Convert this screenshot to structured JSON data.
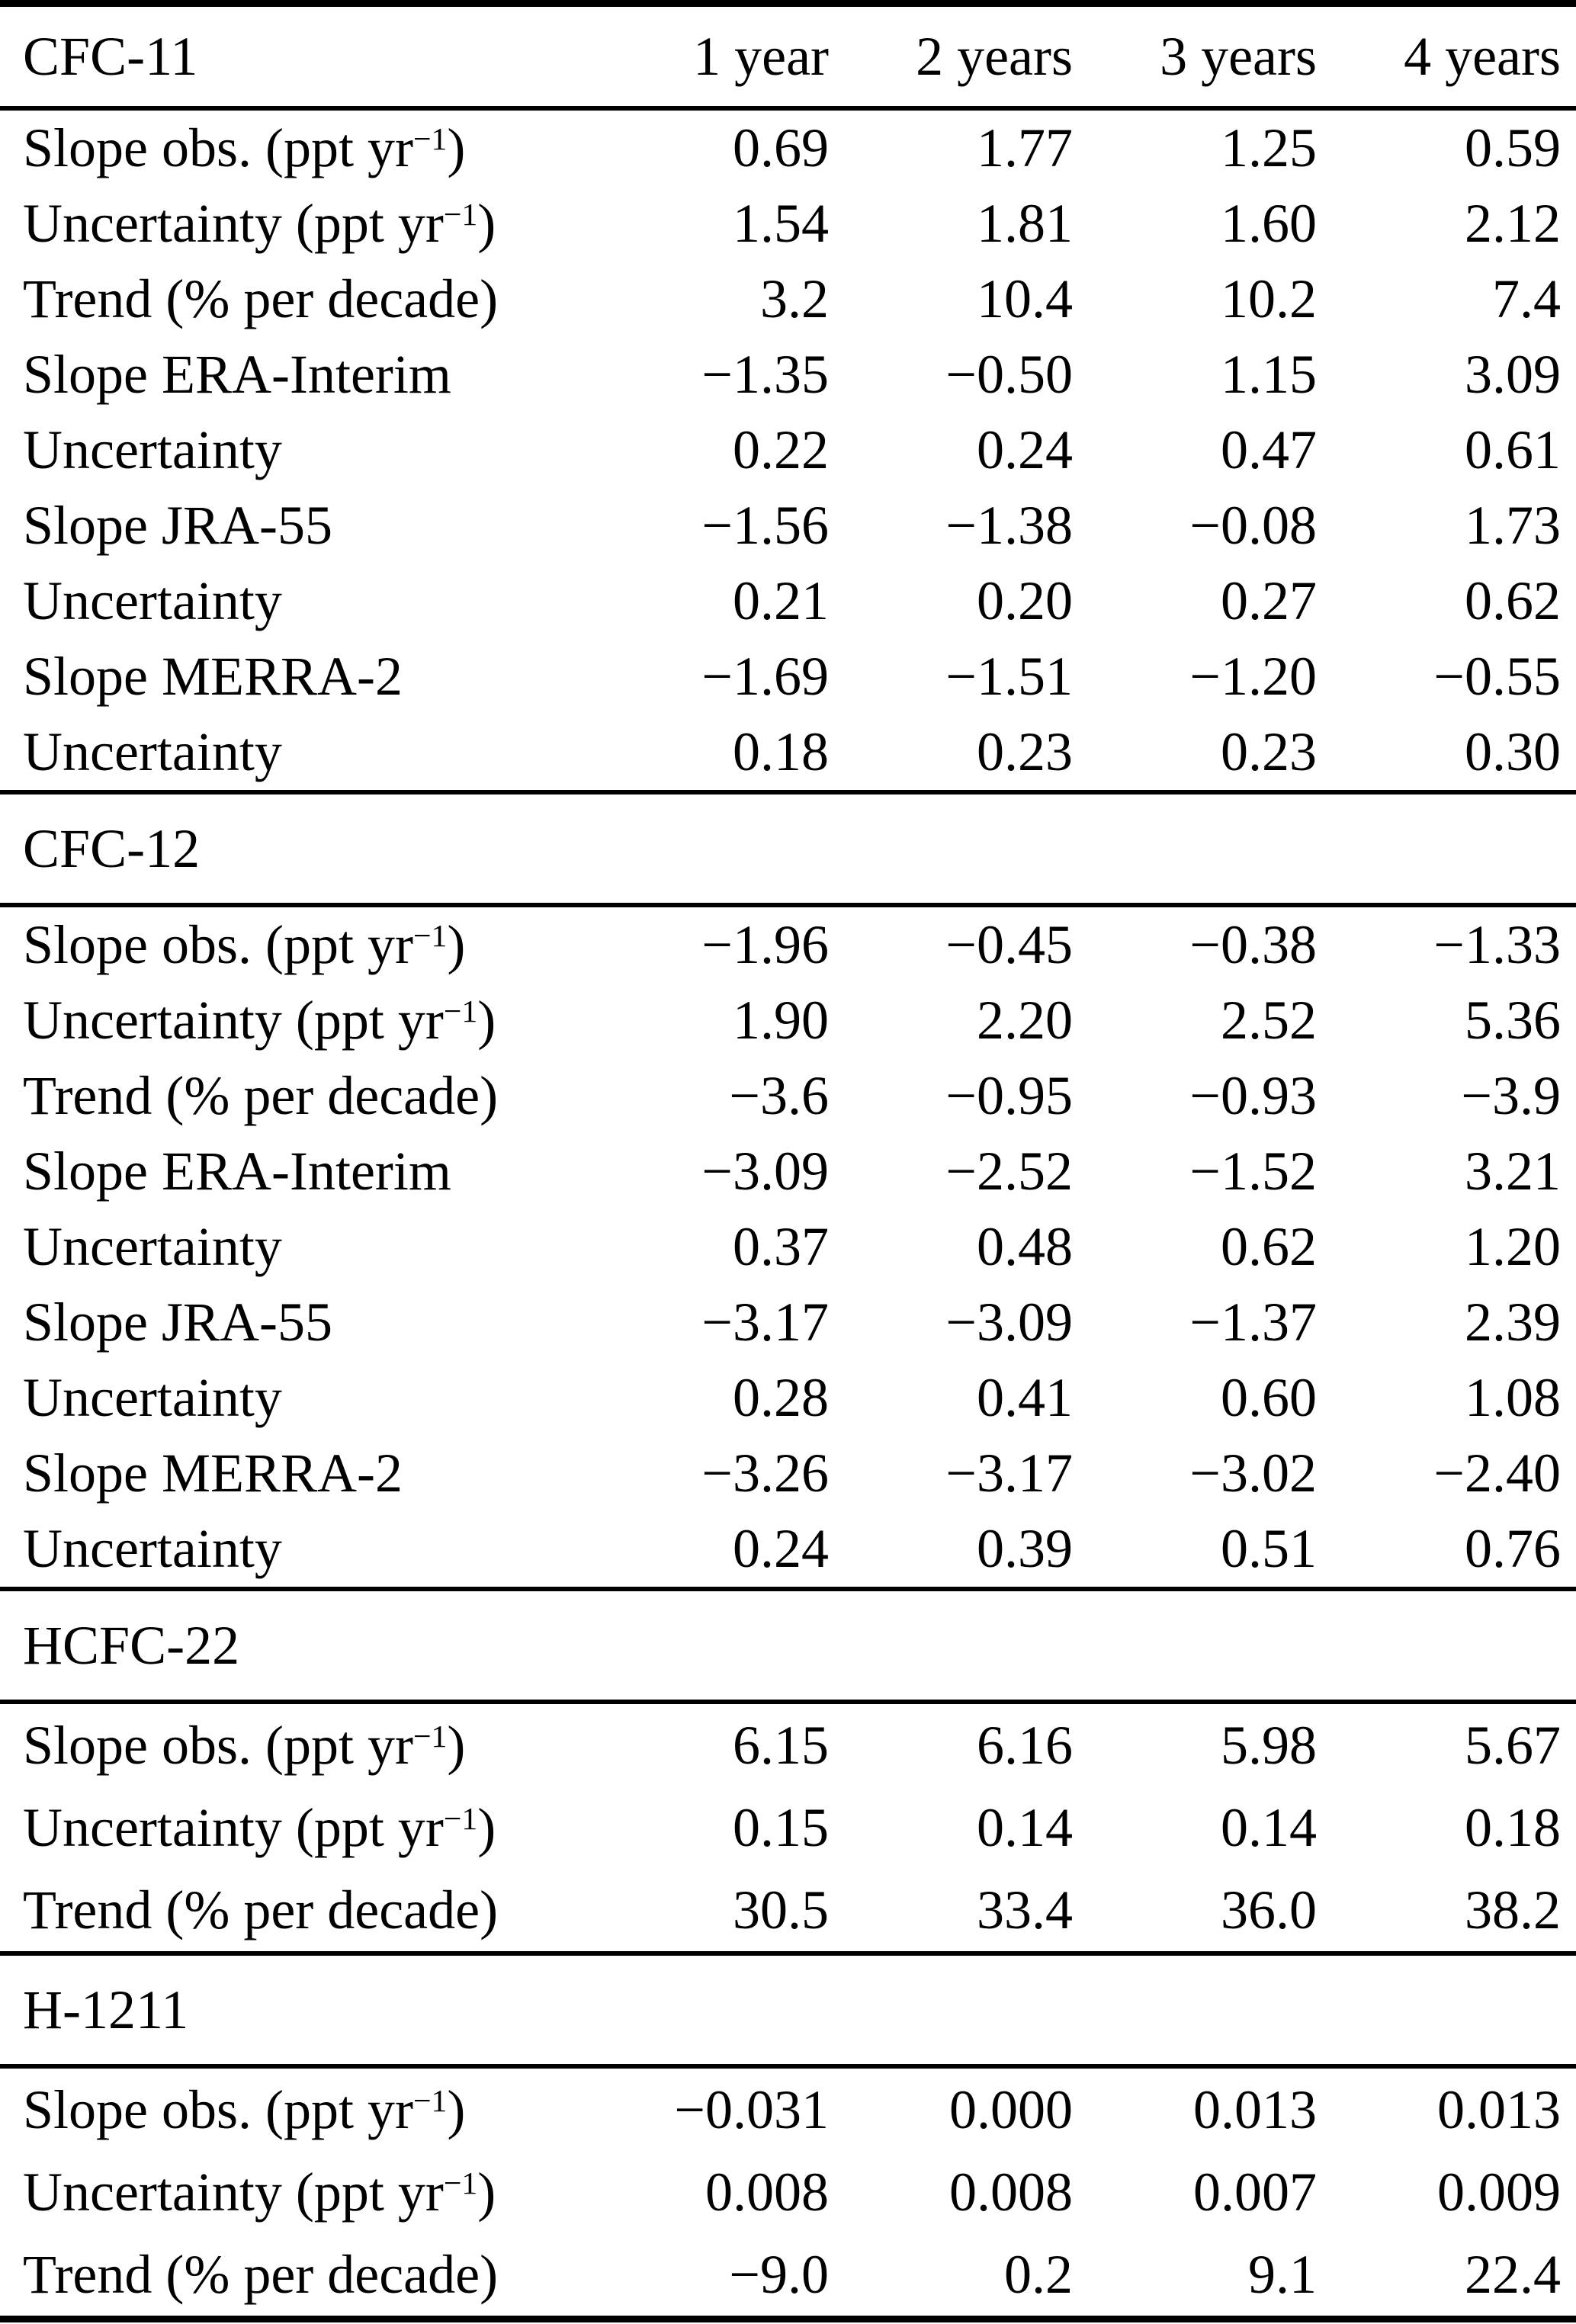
{
  "table": {
    "columns": [
      "1 year",
      "2 years",
      "3 years",
      "4 years"
    ],
    "sections": [
      {
        "title": "CFC-11",
        "show_columns": true,
        "rows": [
          {
            "label": "Slope obs. (ppt yr",
            "sup": "−1",
            "end": ")",
            "values": [
              "0.69",
              "1.77",
              "1.25",
              "0.59"
            ]
          },
          {
            "label": "Uncertainty (ppt yr",
            "sup": "−1",
            "end": ")",
            "values": [
              "1.54",
              "1.81",
              "1.60",
              "2.12"
            ]
          },
          {
            "label": "Trend (% per decade)",
            "sup": "",
            "end": "",
            "values": [
              "3.2",
              "10.4",
              "10.2",
              "7.4"
            ]
          },
          {
            "label": "Slope ERA-Interim",
            "sup": "",
            "end": "",
            "values": [
              "−1.35",
              "−0.50",
              "1.15",
              "3.09"
            ]
          },
          {
            "label": "Uncertainty",
            "sup": "",
            "end": "",
            "values": [
              "0.22",
              "0.24",
              "0.47",
              "0.61"
            ]
          },
          {
            "label": "Slope JRA-55",
            "sup": "",
            "end": "",
            "values": [
              "−1.56",
              "−1.38",
              "−0.08",
              "1.73"
            ]
          },
          {
            "label": "Uncertainty",
            "sup": "",
            "end": "",
            "values": [
              "0.21",
              "0.20",
              "0.27",
              "0.62"
            ]
          },
          {
            "label": "Slope MERRA-2",
            "sup": "",
            "end": "",
            "values": [
              "−1.69",
              "−1.51",
              "−1.20",
              "−0.55"
            ]
          },
          {
            "label": "Uncertainty",
            "sup": "",
            "end": "",
            "values": [
              "0.18",
              "0.23",
              "0.23",
              "0.30"
            ]
          }
        ]
      },
      {
        "title": "CFC-12",
        "show_columns": false,
        "rows": [
          {
            "label": "Slope obs. (ppt yr",
            "sup": "−1",
            "end": ")",
            "values": [
              "−1.96",
              "−0.45",
              "−0.38",
              "−1.33"
            ]
          },
          {
            "label": "Uncertainty (ppt yr",
            "sup": "−1",
            "end": ")",
            "values": [
              "1.90",
              "2.20",
              "2.52",
              "5.36"
            ]
          },
          {
            "label": "Trend (% per decade)",
            "sup": "",
            "end": "",
            "values": [
              "−3.6",
              "−0.95",
              "−0.93",
              "−3.9"
            ]
          },
          {
            "label": "Slope ERA-Interim",
            "sup": "",
            "end": "",
            "values": [
              "−3.09",
              "−2.52",
              "−1.52",
              "3.21"
            ]
          },
          {
            "label": "Uncertainty",
            "sup": "",
            "end": "",
            "values": [
              "0.37",
              "0.48",
              "0.62",
              "1.20"
            ]
          },
          {
            "label": "Slope JRA-55",
            "sup": "",
            "end": "",
            "values": [
              "−3.17",
              "−3.09",
              "−1.37",
              "2.39"
            ]
          },
          {
            "label": "Uncertainty",
            "sup": "",
            "end": "",
            "values": [
              "0.28",
              "0.41",
              "0.60",
              "1.08"
            ]
          },
          {
            "label": "Slope MERRA-2",
            "sup": "",
            "end": "",
            "values": [
              "−3.26",
              "−3.17",
              "−3.02",
              "−2.40"
            ]
          },
          {
            "label": "Uncertainty",
            "sup": "",
            "end": "",
            "values": [
              "0.24",
              "0.39",
              "0.51",
              "0.76"
            ]
          }
        ]
      },
      {
        "title": "HCFC-22",
        "show_columns": false,
        "rows": [
          {
            "label": "Slope obs. (ppt yr",
            "sup": "−1",
            "end": ")",
            "values": [
              "6.15",
              "6.16",
              "5.98",
              "5.67"
            ]
          },
          {
            "label": "Uncertainty (ppt yr",
            "sup": "−1",
            "end": ")",
            "values": [
              "0.15",
              "0.14",
              "0.14",
              "0.18"
            ]
          },
          {
            "label": "Trend (% per decade)",
            "sup": "",
            "end": "",
            "values": [
              "30.5",
              "33.4",
              "36.0",
              "38.2"
            ]
          }
        ]
      },
      {
        "title": "H-1211",
        "show_columns": false,
        "rows": [
          {
            "label": "Slope obs. (ppt yr",
            "sup": "−1",
            "end": ")",
            "values": [
              "−0.031",
              "0.000",
              "0.013",
              "0.013"
            ]
          },
          {
            "label": "Uncertainty (ppt yr",
            "sup": "−1",
            "end": ")",
            "values": [
              "0.008",
              "0.008",
              "0.007",
              "0.009"
            ]
          },
          {
            "label": "Trend (% per decade)",
            "sup": "",
            "end": "",
            "values": [
              "−9.0",
              "0.2",
              "9.1",
              "22.4"
            ]
          }
        ]
      }
    ]
  }
}
